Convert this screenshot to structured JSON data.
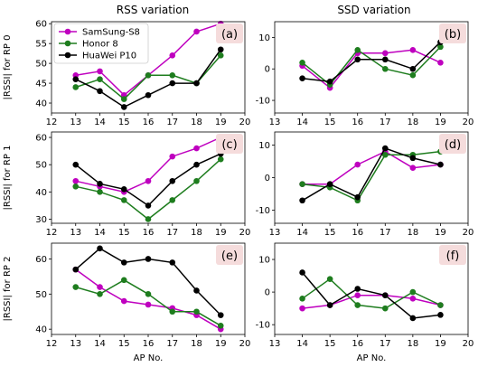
{
  "titles": {
    "left": "RSS variation",
    "right": "SSD variation"
  },
  "xlabel": "AP No.",
  "legend": {
    "placement": "upper-left",
    "entries": [
      {
        "name": "SamSung-S8",
        "color": "#bf00bf"
      },
      {
        "name": "Honor 8",
        "color": "#1e7d1e"
      },
      {
        "name": "HuaWei P10",
        "color": "#000000"
      }
    ]
  },
  "colors": {
    "samsung": "#bf00bf",
    "honor": "#1e7d1e",
    "huawei": "#000000",
    "label_box": "#f5dcdc"
  },
  "chart_data": [
    {
      "id": "a",
      "type": "line",
      "panel_label": "(a)",
      "ylabel": "|RSSI| for RP 0",
      "xlim": [
        12,
        20
      ],
      "ylim": [
        37.5,
        60.5
      ],
      "xticks": [
        12,
        13,
        14,
        15,
        16,
        17,
        18,
        19,
        20
      ],
      "yticks": [
        40,
        45,
        50,
        55,
        60
      ],
      "x": [
        13,
        14,
        15,
        16,
        17,
        18,
        19
      ],
      "series": [
        {
          "name": "SamSung-S8",
          "values": [
            47,
            48,
            42,
            47,
            52,
            58,
            60
          ]
        },
        {
          "name": "Honor 8",
          "values": [
            44,
            46,
            41,
            47,
            47,
            45,
            52
          ]
        },
        {
          "name": "HuaWei P10",
          "values": [
            46,
            43,
            39,
            42,
            45,
            45,
            53.5
          ]
        }
      ]
    },
    {
      "id": "b",
      "type": "line",
      "panel_label": "(b)",
      "ylabel": "",
      "xlim": [
        13,
        20
      ],
      "ylim": [
        -14,
        15
      ],
      "xticks": [
        13,
        14,
        15,
        16,
        17,
        18,
        19,
        20
      ],
      "yticks": [
        -10,
        0,
        10
      ],
      "x": [
        14,
        15,
        16,
        17,
        18,
        19
      ],
      "series": [
        {
          "name": "SamSung-S8",
          "values": [
            1,
            -6,
            5,
            5,
            6,
            2
          ]
        },
        {
          "name": "Honor 8",
          "values": [
            2,
            -5,
            6,
            0,
            -2,
            7
          ]
        },
        {
          "name": "HuaWei P10",
          "values": [
            -3,
            -4,
            3,
            3,
            0,
            8.5
          ]
        }
      ]
    },
    {
      "id": "c",
      "type": "line",
      "panel_label": "(c)",
      "ylabel": "|RSSI| for RP 1",
      "xlim": [
        12,
        20
      ],
      "ylim": [
        28.5,
        62
      ],
      "xticks": [
        12,
        13,
        14,
        15,
        16,
        17,
        18,
        19,
        20
      ],
      "yticks": [
        30,
        40,
        50,
        60
      ],
      "x": [
        13,
        14,
        15,
        16,
        17,
        18,
        19
      ],
      "series": [
        {
          "name": "SamSung-S8",
          "values": [
            44,
            42,
            40,
            44,
            53,
            56,
            60
          ]
        },
        {
          "name": "Honor 8",
          "values": [
            42,
            40,
            37,
            30,
            37,
            44,
            52
          ]
        },
        {
          "name": "HuaWei P10",
          "values": [
            50,
            43,
            41,
            35,
            44,
            50,
            54
          ]
        }
      ]
    },
    {
      "id": "d",
      "type": "line",
      "panel_label": "(d)",
      "ylabel": "",
      "xlim": [
        13,
        20
      ],
      "ylim": [
        -14,
        14
      ],
      "xticks": [
        13,
        14,
        15,
        16,
        17,
        18,
        19,
        20
      ],
      "yticks": [
        -10,
        0,
        10
      ],
      "x": [
        14,
        15,
        16,
        17,
        18,
        19
      ],
      "series": [
        {
          "name": "SamSung-S8",
          "values": [
            -2,
            -2,
            4,
            8,
            3,
            4
          ]
        },
        {
          "name": "Honor 8",
          "values": [
            -2,
            -3,
            -7,
            7,
            7,
            8
          ]
        },
        {
          "name": "HuaWei P10",
          "values": [
            -7,
            -2,
            -6,
            9,
            6,
            4
          ]
        }
      ]
    },
    {
      "id": "e",
      "type": "line",
      "panel_label": "(e)",
      "ylabel": "|RSSI| for RP 2",
      "xlim": [
        12,
        20
      ],
      "ylim": [
        38.5,
        64.5
      ],
      "xticks": [
        12,
        13,
        14,
        15,
        16,
        17,
        18,
        19,
        20
      ],
      "yticks": [
        40,
        50,
        60
      ],
      "x": [
        13,
        14,
        15,
        16,
        17,
        18,
        19
      ],
      "series": [
        {
          "name": "SamSung-S8",
          "values": [
            57,
            52,
            48,
            47,
            46,
            44,
            40
          ]
        },
        {
          "name": "Honor 8",
          "values": [
            52,
            50,
            54,
            50,
            45,
            45,
            41
          ]
        },
        {
          "name": "HuaWei P10",
          "values": [
            57,
            63,
            59,
            60,
            59,
            51,
            44
          ]
        }
      ]
    },
    {
      "id": "f",
      "type": "line",
      "panel_label": "(f)",
      "ylabel": "",
      "xlim": [
        13,
        20
      ],
      "ylim": [
        -13,
        15
      ],
      "xticks": [
        13,
        14,
        15,
        16,
        17,
        18,
        19,
        20
      ],
      "yticks": [
        -10,
        0,
        10
      ],
      "x": [
        14,
        15,
        16,
        17,
        18,
        19
      ],
      "series": [
        {
          "name": "SamSung-S8",
          "values": [
            -5,
            -4,
            -1,
            -1,
            -2,
            -4
          ]
        },
        {
          "name": "Honor 8",
          "values": [
            -2,
            4,
            -4,
            -5,
            0,
            -4
          ]
        },
        {
          "name": "HuaWei P10",
          "values": [
            6,
            -4,
            1,
            -1,
            -8,
            -7
          ]
        }
      ]
    }
  ]
}
